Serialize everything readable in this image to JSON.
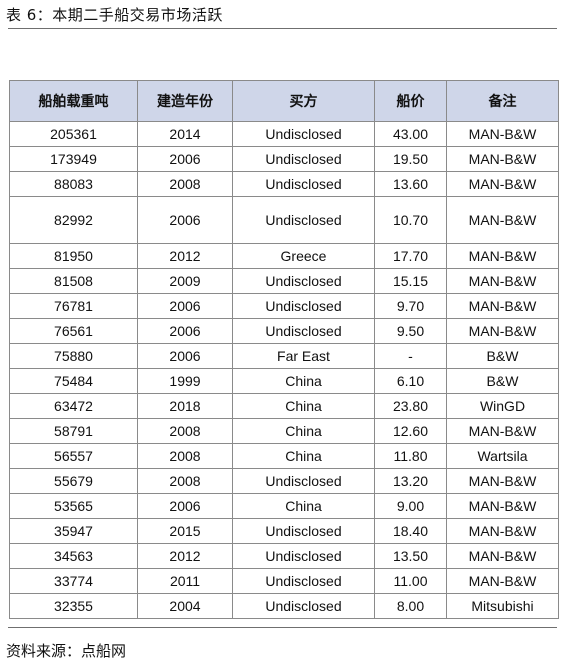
{
  "title": "表 6：本期二手船交易市场活跃",
  "table": {
    "headers": [
      "船舶载重吨",
      "建造年份",
      "买方",
      "船价",
      "备注"
    ],
    "rows": [
      [
        "205361",
        "2014",
        "Undisclosed",
        "43.00",
        "MAN-B&W"
      ],
      [
        "173949",
        "2006",
        "Undisclosed",
        "19.50",
        "MAN-B&W"
      ],
      [
        "88083",
        "2008",
        "Undisclosed",
        "13.60",
        "MAN-B&W"
      ],
      [
        "82992",
        "2006",
        "Undisclosed",
        "10.70",
        "MAN-B&W"
      ],
      [
        "81950",
        "2012",
        "Greece",
        "17.70",
        "MAN-B&W"
      ],
      [
        "81508",
        "2009",
        "Undisclosed",
        "15.15",
        "MAN-B&W"
      ],
      [
        "76781",
        "2006",
        "Undisclosed",
        "9.70",
        "MAN-B&W"
      ],
      [
        "76561",
        "2006",
        "Undisclosed",
        "9.50",
        "MAN-B&W"
      ],
      [
        "75880",
        "2006",
        "Far East",
        "-",
        "B&W"
      ],
      [
        "75484",
        "1999",
        "China",
        "6.10",
        "B&W"
      ],
      [
        "63472",
        "2018",
        "China",
        "23.80",
        "WinGD"
      ],
      [
        "58791",
        "2008",
        "China",
        "12.60",
        "MAN-B&W"
      ],
      [
        "56557",
        "2008",
        "China",
        "11.80",
        "Wartsila"
      ],
      [
        "55679",
        "2008",
        "Undisclosed",
        "13.20",
        "MAN-B&W"
      ],
      [
        "53565",
        "2006",
        "China",
        "9.00",
        "MAN-B&W"
      ],
      [
        "35947",
        "2015",
        "Undisclosed",
        "18.40",
        "MAN-B&W"
      ],
      [
        "34563",
        "2012",
        "Undisclosed",
        "13.50",
        "MAN-B&W"
      ],
      [
        "33774",
        "2011",
        "Undisclosed",
        "11.00",
        "MAN-B&W"
      ],
      [
        "32355",
        "2004",
        "Undisclosed",
        "8.00",
        "Mitsubishi"
      ]
    ]
  },
  "source": "资料来源：点船网",
  "colors": {
    "header_bg": "#cfd6e9",
    "border": "#8a8a8a"
  }
}
